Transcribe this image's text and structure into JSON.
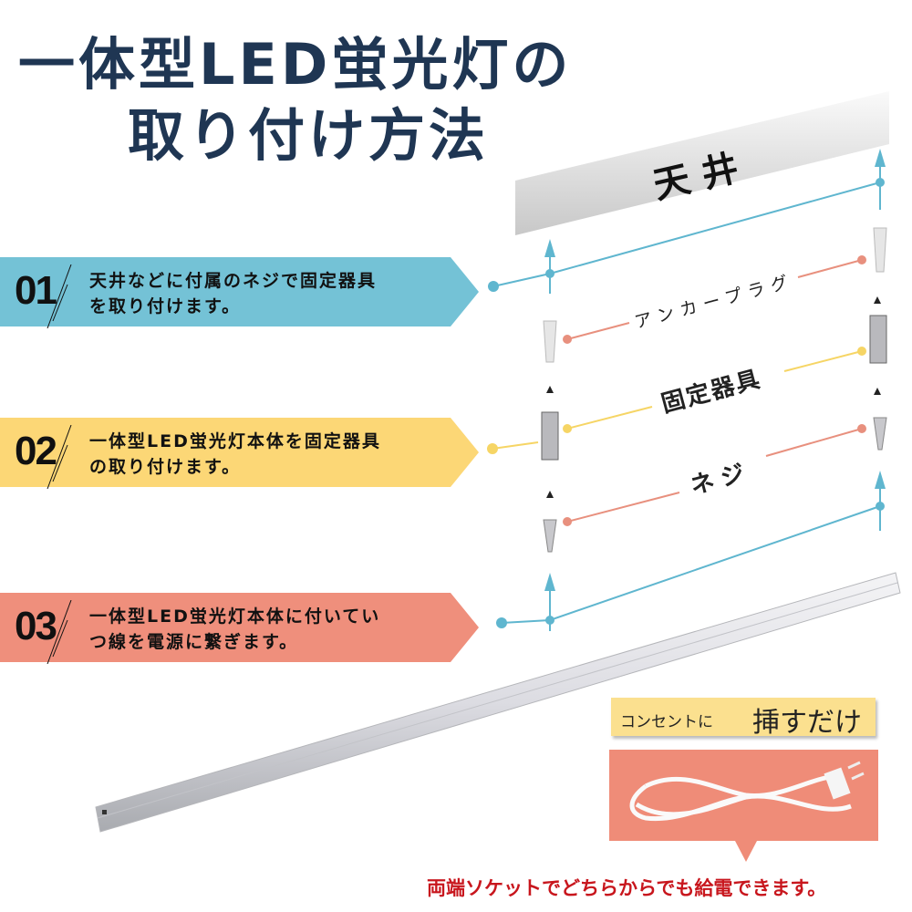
{
  "title": {
    "line1": "一体型LED蛍光灯の",
    "line2": "取り付け方法"
  },
  "ceiling_label": "天井",
  "steps": [
    {
      "num": "01",
      "line1": "天井などに付属のネジで固定器具",
      "line2": "を取り付けます。",
      "color": "#74c2d6"
    },
    {
      "num": "02",
      "line1": "一体型LED蛍光灯本体を固定器具",
      "line2": "の取り付けます。",
      "color": "#fcd776"
    },
    {
      "num": "03",
      "line1": "一体型LED蛍光灯本体に付いてい",
      "line2": "つ線を電源に繋ぎます。",
      "color": "#ef8f7c"
    }
  ],
  "parts": {
    "anchor": "アンカープラグ",
    "bracket": "固定器具",
    "screw": "ネジ"
  },
  "badge": {
    "small": "コンセントに",
    "large": "挿すだけ"
  },
  "note": "両端ソケットでどちらからでも給電できます。",
  "colors": {
    "title": "#1f3653",
    "blue": "#74c2d6",
    "yellow": "#fcd776",
    "salmon": "#ef8f7c",
    "note": "#c8161d"
  }
}
